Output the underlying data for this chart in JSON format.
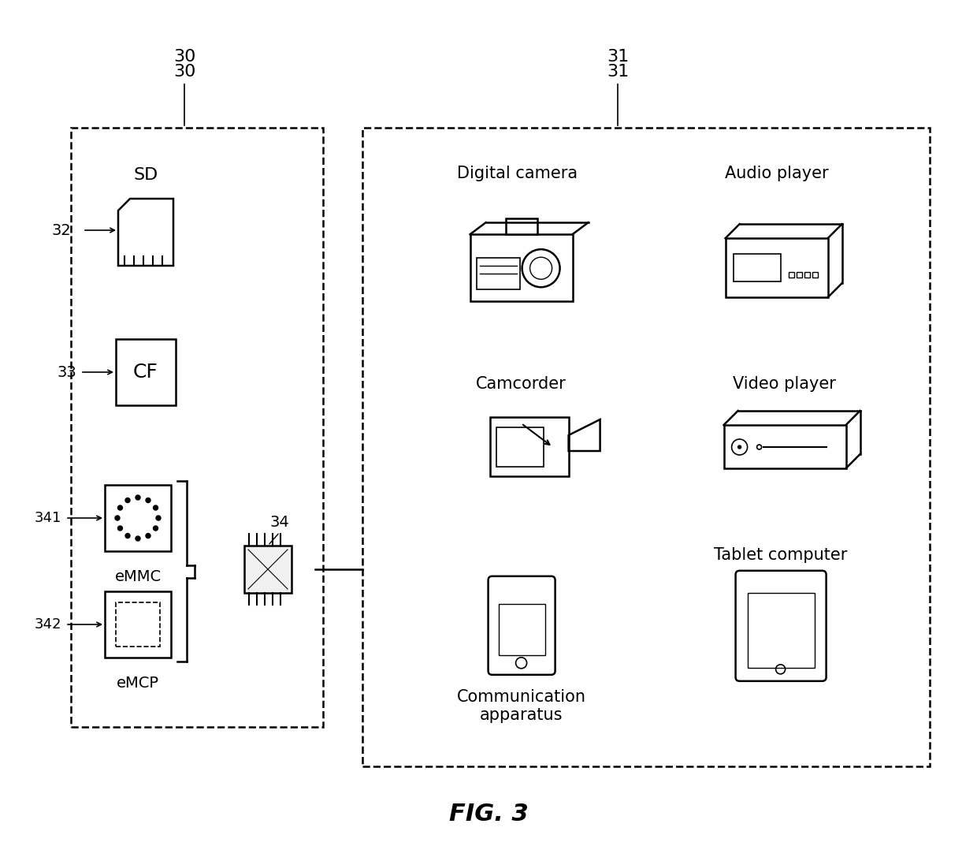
{
  "bg_color": "#ffffff",
  "line_color": "#000000",
  "fig_title": "FIG. 3",
  "box30_label": "30",
  "box31_label": "31",
  "label_SD": "SD",
  "label_32": "32",
  "label_CF": "CF",
  "label_33": "33",
  "label_34": "34",
  "label_341": "341",
  "label_342": "342",
  "label_eMMC": "eMMC",
  "label_eMCP": "eMCP",
  "label_digital_camera": "Digital camera",
  "label_audio_player": "Audio player",
  "label_camcorder": "Camcorder",
  "label_video_player": "Video player",
  "label_comm_apparatus": "Communication\napparatus",
  "label_tablet": "Tablet computer"
}
